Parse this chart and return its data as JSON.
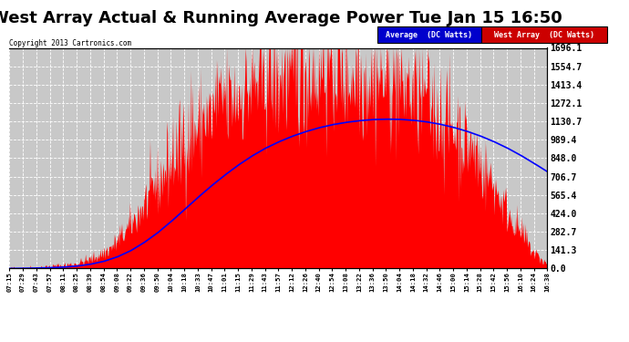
{
  "title": "West Array Actual & Running Average Power Tue Jan 15 16:50",
  "copyright": "Copyright 2013 Cartronics.com",
  "ylabel_right_ticks": [
    0.0,
    141.3,
    282.7,
    424.0,
    565.4,
    706.7,
    848.0,
    989.4,
    1130.7,
    1272.1,
    1413.4,
    1554.7,
    1696.1
  ],
  "ymax": 1696.1,
  "ymin": 0.0,
  "background_color": "#ffffff",
  "plot_bg_color": "#c8c8c8",
  "grid_color": "#ffffff",
  "fill_color": "#ff0000",
  "line_color": "#0000ff",
  "title_fontsize": 13,
  "legend_avg_bg": "#0000cc",
  "legend_west_bg": "#cc0000",
  "x_labels": [
    "07:15",
    "07:29",
    "07:43",
    "07:57",
    "08:11",
    "08:25",
    "08:39",
    "08:54",
    "09:08",
    "09:22",
    "09:36",
    "09:50",
    "10:04",
    "10:18",
    "10:33",
    "10:47",
    "11:01",
    "11:15",
    "11:29",
    "11:43",
    "11:57",
    "12:12",
    "12:26",
    "12:40",
    "12:54",
    "13:08",
    "13:22",
    "13:36",
    "13:50",
    "14:04",
    "14:18",
    "14:32",
    "14:46",
    "15:00",
    "15:14",
    "15:28",
    "15:42",
    "15:56",
    "16:10",
    "16:24",
    "16:38"
  ],
  "west_envelope": [
    0,
    3,
    8,
    15,
    25,
    40,
    70,
    120,
    200,
    330,
    490,
    650,
    800,
    950,
    1080,
    1180,
    1270,
    1340,
    1400,
    1450,
    1480,
    1500,
    1510,
    1510,
    1510,
    1500,
    1490,
    1470,
    1440,
    1400,
    1350,
    1280,
    1190,
    1080,
    950,
    800,
    630,
    450,
    270,
    120,
    30
  ],
  "avg_power": [
    0,
    1,
    3,
    6,
    10,
    18,
    32,
    54,
    88,
    135,
    198,
    272,
    358,
    450,
    544,
    633,
    716,
    793,
    862,
    922,
    972,
    1015,
    1051,
    1081,
    1105,
    1123,
    1136,
    1145,
    1148,
    1147,
    1140,
    1128,
    1110,
    1086,
    1056,
    1020,
    977,
    928,
    872,
    810,
    745
  ]
}
